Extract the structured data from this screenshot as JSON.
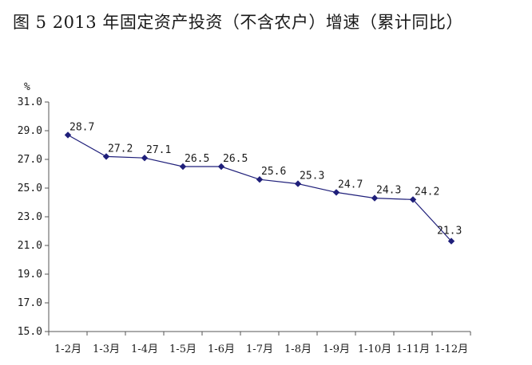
{
  "chart_data": {
    "type": "line",
    "title": "图 5   2013 年固定资产投资（不含农户）增速（累计同比）",
    "ylabel": "%",
    "xlabel": "",
    "ylim": [
      15.0,
      31.0
    ],
    "yticks": [
      "31.0",
      "29.0",
      "27.0",
      "25.0",
      "23.0",
      "21.0",
      "19.0",
      "17.0",
      "15.0"
    ],
    "categories": [
      "1-2月",
      "1-3月",
      "1-4月",
      "1-5月",
      "1-6月",
      "1-7月",
      "1-8月",
      "1-9月",
      "1-10月",
      "1-11月",
      "1-12月"
    ],
    "series": [
      {
        "values": [
          28.7,
          27.2,
          27.1,
          26.5,
          26.5,
          25.6,
          25.3,
          24.7,
          24.3,
          24.2,
          21.3
        ],
        "labels": [
          "28.7",
          "27.2",
          "27.1",
          "26.5",
          "26.5",
          "25.6",
          "25.3",
          "24.7",
          "24.3",
          "24.2",
          "21.3"
        ],
        "color": "#1f1f7a"
      }
    ],
    "grid": false,
    "legend": "none"
  }
}
